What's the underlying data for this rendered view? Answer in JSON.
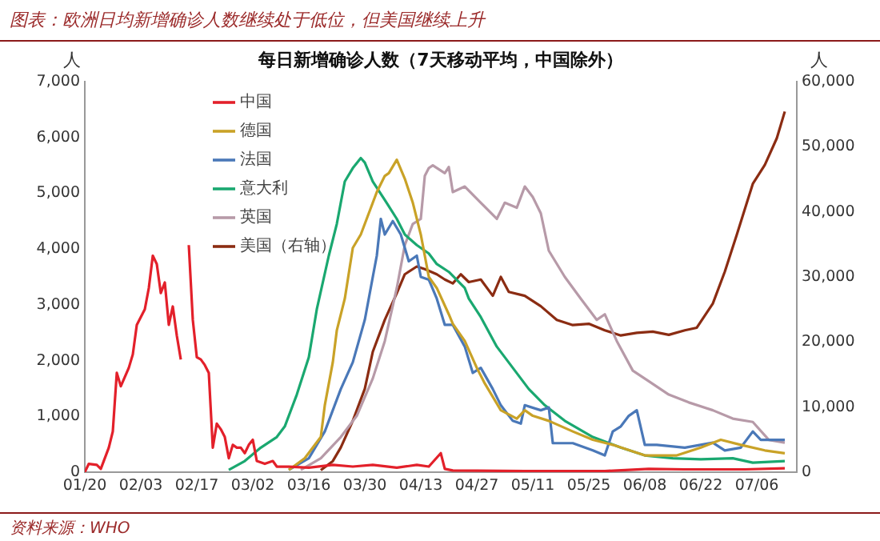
{
  "chart_data": {
    "type": "line",
    "title": "图表：欧洲日均新增确诊人数继续处于低位，但美国继续上升",
    "subtitle": "每日新增确诊人数（7天移动平均，中国除外）",
    "ylabel": "人",
    "y2label": "人",
    "annotations": [
      "资料来源：WHO"
    ],
    "legend": "top left",
    "xlim": [
      "--01-20",
      "--07-16"
    ],
    "xticks": [
      {
        "value": "--01-20",
        "label": "01/20"
      },
      {
        "value": "--02-03",
        "label": "02/03"
      },
      {
        "value": "--02-17",
        "label": "02/17"
      },
      {
        "value": "--03-02",
        "label": "03/02"
      },
      {
        "value": "--03-16",
        "label": "03/16"
      },
      {
        "value": "--03-30",
        "label": "03/30"
      },
      {
        "value": "--04-13",
        "label": "04/13"
      },
      {
        "value": "--04-27",
        "label": "04/27"
      },
      {
        "value": "--05-11",
        "label": "05/11"
      },
      {
        "value": "--05-25",
        "label": "05/25"
      },
      {
        "value": "--06-08",
        "label": "06/08"
      },
      {
        "value": "--06-22",
        "label": "06/22"
      },
      {
        "value": "--07-06",
        "label": "07/06"
      }
    ],
    "ylim": [
      0,
      7000
    ],
    "yticks": [
      0,
      {
        "value": 1000,
        "label": "1,000"
      },
      {
        "value": 2000,
        "label": "2,000"
      },
      {
        "value": 3000,
        "label": "3,000"
      },
      {
        "value": 4000,
        "label": "4,000"
      },
      {
        "value": 5000,
        "label": "5,000"
      },
      {
        "value": 6000,
        "label": "6,000"
      },
      {
        "value": 7000,
        "label": "7,000"
      }
    ],
    "y2lim": [
      0,
      60000
    ],
    "y2ticks": [
      0,
      {
        "value": 10000,
        "label": "10,000"
      },
      {
        "value": 20000,
        "label": "20,000"
      },
      {
        "value": 30000,
        "label": "30,000"
      },
      {
        "value": 40000,
        "label": "40,000"
      },
      {
        "value": 50000,
        "label": "50,000"
      },
      {
        "value": 60000,
        "label": "60,000"
      }
    ],
    "series": [
      {
        "name": "中国",
        "color": "#e3202a",
        "x": [
          "--01-20",
          "--01-21",
          "--01-23",
          "--01-24",
          "--01-26",
          "--01-27",
          "--01-28",
          "--01-29",
          "--01-31",
          "--02-01",
          "--02-02",
          "--02-04",
          "--02-05",
          "--02-06",
          "--02-07",
          "--02-08",
          "--02-09",
          "--02-10",
          "--02-11",
          "--02-12",
          "--02-13",
          "--02-14",
          "--02-15",
          "--02-16",
          "--02-17",
          "--02-18",
          "--02-19",
          "--02-20",
          "--02-21",
          "--02-22",
          "--02-23",
          "--02-24",
          "--02-25",
          "--02-26",
          "--02-27",
          "--02-28",
          "--02-29",
          "--03-01",
          "--03-02",
          "--03-03",
          "--03-05",
          "--03-07",
          "--03-08",
          "--03-11",
          "--03-16",
          "--03-22",
          "--03-27",
          "--04-01",
          "--04-07",
          "--04-12",
          "--04-15",
          "--04-18",
          "--04-19",
          "--04-21",
          "--05-09",
          "--05-29",
          "--06-09",
          "--06-18",
          "--07-03",
          "--07-13"
        ],
        "values": [
          0,
          150,
          130,
          60,
          440,
          730,
          1780,
          1540,
          1870,
          2110,
          2640,
          2920,
          3300,
          3880,
          3730,
          3210,
          3400,
          2640,
          2970,
          2450,
          2020,
          null,
          4070,
          2730,
          2060,
          2020,
          1920,
          1780,
          440,
          870,
          770,
          630,
          250,
          490,
          440,
          440,
          340,
          490,
          580,
          200,
          150,
          200,
          100,
          100,
          80,
          130,
          100,
          130,
          80,
          130,
          100,
          340,
          60,
          30,
          20,
          20,
          60,
          50,
          50,
          70
        ]
      },
      {
        "name": "德国",
        "color": "#c9a227",
        "x": [
          "--03-11",
          "--03-15",
          "--03-19",
          "--03-20",
          "--03-22",
          "--03-23",
          "--03-25",
          "--03-27",
          "--03-29",
          "--03-31",
          "--04-02",
          "--04-04",
          "--04-05",
          "--04-07",
          "--04-09",
          "--04-11",
          "--04-13",
          "--04-15",
          "--04-17",
          "--04-20",
          "--04-21",
          "--04-24",
          "--04-27",
          "--04-29",
          "--05-03",
          "--05-07",
          "--05-09",
          "--05-11",
          "--05-15",
          "--05-21",
          "--05-26",
          "--05-31",
          "--06-08",
          "--06-16",
          "--06-22",
          "--06-27",
          "--07-02",
          "--07-08",
          "--07-13"
        ],
        "values": [
          40,
          250,
          630,
          1200,
          1970,
          2540,
          3110,
          4020,
          4260,
          4640,
          5020,
          5310,
          5360,
          5600,
          5260,
          4830,
          4260,
          3500,
          3300,
          2830,
          2660,
          2350,
          1870,
          1590,
          1110,
          960,
          1110,
          1010,
          920,
          730,
          580,
          490,
          300,
          300,
          440,
          580,
          490,
          390,
          340
        ]
      },
      {
        "name": "法国",
        "color": "#4a78b8",
        "x": [
          "--03-11",
          "--03-16",
          "--03-20",
          "--03-22",
          "--03-24",
          "--03-27",
          "--03-30",
          "--04-01",
          "--04-02",
          "--04-03",
          "--04-04",
          "--04-06",
          "--04-08",
          "--04-10",
          "--04-12",
          "--04-13",
          "--04-15",
          "--04-17",
          "--04-19",
          "--04-21",
          "--04-24",
          "--04-26",
          "--04-28",
          "--05-01",
          "--05-03",
          "--05-06",
          "--05-08",
          "--05-09",
          "--05-13",
          "--05-15",
          "--05-16",
          "--05-21",
          "--05-26",
          "--05-29",
          "--05-31",
          "--06-02",
          "--06-04",
          "--06-06",
          "--06-08",
          "--06-11",
          "--06-18",
          "--06-25",
          "--06-28",
          "--07-02",
          "--07-05",
          "--07-07",
          "--07-13"
        ],
        "values": [
          40,
          250,
          730,
          1110,
          1490,
          1970,
          2730,
          3500,
          3880,
          4540,
          4260,
          4500,
          4260,
          3780,
          3880,
          3500,
          3450,
          3110,
          2640,
          2640,
          2250,
          1780,
          1870,
          1490,
          1200,
          920,
          870,
          1200,
          1110,
          1160,
          520,
          520,
          390,
          300,
          730,
          820,
          1010,
          1110,
          490,
          490,
          440,
          530,
          390,
          440,
          730,
          580,
          580
        ]
      },
      {
        "name": "意大利",
        "color": "#1aa870",
        "x": [
          "--02-25",
          "--02-29",
          "--03-04",
          "--03-08",
          "--03-10",
          "--03-13",
          "--03-16",
          "--03-18",
          "--03-21",
          "--03-23",
          "--03-25",
          "--03-27",
          "--03-29",
          "--03-30",
          "--04-01",
          "--04-04",
          "--04-07",
          "--04-09",
          "--04-12",
          "--04-15",
          "--04-17",
          "--04-20",
          "--04-24",
          "--04-25",
          "--04-28",
          "--05-02",
          "--05-06",
          "--05-10",
          "--05-14",
          "--05-19",
          "--05-26",
          "--06-02",
          "--06-08",
          "--06-15",
          "--06-22",
          "--06-30",
          "--07-05",
          "--07-13"
        ],
        "values": [
          40,
          200,
          440,
          630,
          820,
          1390,
          2060,
          2920,
          3880,
          4450,
          5210,
          5450,
          5630,
          5550,
          5210,
          4880,
          4540,
          4260,
          4070,
          3920,
          3730,
          3590,
          3300,
          3110,
          2780,
          2250,
          1870,
          1490,
          1200,
          920,
          630,
          440,
          300,
          250,
          230,
          250,
          170,
          200
        ]
      },
      {
        "name": "英国",
        "color": "#b79aa8",
        "x": [
          "--03-14",
          "--03-19",
          "--03-24",
          "--03-28",
          "--04-01",
          "--04-04",
          "--04-07",
          "--04-09",
          "--04-11",
          "--04-13",
          "--04-14",
          "--04-15",
          "--04-16",
          "--04-19",
          "--04-20",
          "--04-21",
          "--04-24",
          "--04-28",
          "--05-02",
          "--05-04",
          "--05-07",
          "--05-09",
          "--05-11",
          "--05-13",
          "--05-15",
          "--05-19",
          "--05-23",
          "--05-27",
          "--05-29",
          "--06-01",
          "--06-05",
          "--06-09",
          "--06-14",
          "--06-19",
          "--06-25",
          "--06-30",
          "--07-05",
          "--07-09",
          "--07-13"
        ],
        "values": [
          40,
          250,
          630,
          1010,
          1680,
          2350,
          3300,
          4070,
          4450,
          4540,
          5310,
          5450,
          5500,
          5360,
          5470,
          5020,
          5120,
          4830,
          4540,
          4830,
          4740,
          5120,
          4930,
          4640,
          3970,
          3500,
          3110,
          2730,
          2830,
          2350,
          1820,
          1630,
          1390,
          1250,
          1110,
          960,
          900,
          580,
          530
        ]
      },
      {
        "name": "美国（右轴）",
        "color": "#8b2c12",
        "axis": "y2",
        "x": [
          "--03-19",
          "--03-22",
          "--03-24",
          "--03-27",
          "--03-30",
          "--04-01",
          "--04-04",
          "--04-07",
          "--04-09",
          "--04-12",
          "--04-14",
          "--04-17",
          "--04-19",
          "--04-21",
          "--04-23",
          "--04-25",
          "--04-28",
          "--05-01",
          "--05-03",
          "--05-05",
          "--05-09",
          "--05-13",
          "--05-17",
          "--05-21",
          "--05-25",
          "--05-29",
          "--06-02",
          "--06-06",
          "--06-10",
          "--06-14",
          "--06-18",
          "--06-21",
          "--06-25",
          "--06-28",
          "--07-01",
          "--07-05",
          "--07-08",
          "--07-11",
          "--07-13"
        ],
        "values": [
          300,
          1700,
          3800,
          7900,
          12800,
          18500,
          23400,
          27500,
          30400,
          31600,
          31200,
          30400,
          29600,
          29000,
          30400,
          29200,
          29600,
          27100,
          30000,
          27700,
          27100,
          25500,
          23400,
          22600,
          22800,
          21800,
          21000,
          21400,
          21600,
          21100,
          21800,
          22200,
          25900,
          30800,
          36500,
          44300,
          47200,
          51300,
          55400
        ]
      }
    ]
  }
}
